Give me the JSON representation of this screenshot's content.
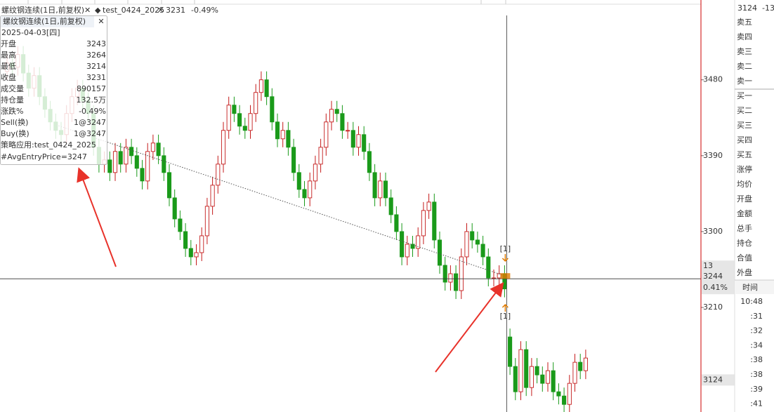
{
  "toolbar": {
    "symbol": "螺纹钢连续(1日,前复权)",
    "close_icon": "✕",
    "strategy": "test_0424_2025",
    "strategy_icon": "◆",
    "close_icon_2": "✕",
    "price": "3231",
    "change": "-0.49%"
  },
  "tooltip": {
    "title": "螺纹钢连续(1日,前复权)",
    "date": "2025-04-03[四]",
    "rows": [
      {
        "label": "开盘",
        "value": "3243",
        "color": "#333333"
      },
      {
        "label": "最高",
        "value": "3264",
        "color": "#333333"
      },
      {
        "label": "最低",
        "value": "3214",
        "color": "#333333"
      },
      {
        "label": "收盘",
        "value": "3231",
        "color": "#1a9a1a"
      },
      {
        "label": "成交量",
        "value": "890157",
        "color": "#333333"
      },
      {
        "label": "持仓量",
        "value": "132.5万",
        "color": "#333333"
      },
      {
        "label": "涨跌%",
        "value": "-0.49%",
        "color": "#1a9a1a"
      },
      {
        "label": "Sell(换)",
        "value": "1@3247",
        "color": "#333333"
      },
      {
        "label": "Buy(换)",
        "value": "1@3247",
        "color": "#333333"
      }
    ],
    "strategy_line": "策略应用:test_0424_2025",
    "entry_line": "#AvgEntryPrice=3247"
  },
  "chart_data": {
    "type": "candlestick",
    "up_color": "#c41a1a",
    "down_color": "#1a9a1a",
    "open": [
      3490,
      3500,
      3495,
      3510,
      3488,
      3470,
      3485,
      3460,
      3445,
      3430,
      3420,
      3415,
      3440,
      3460,
      3470,
      3455,
      3440,
      3400,
      3380,
      3385,
      3370,
      3395,
      3380,
      3400,
      3390,
      3375,
      3360,
      3395,
      3405,
      3390,
      3370,
      3340,
      3315,
      3300,
      3280,
      3270,
      3275,
      3295,
      3330,
      3355,
      3380,
      3420,
      3450,
      3440,
      3425,
      3420,
      3440,
      3465,
      3480,
      3460,
      3430,
      3410,
      3420,
      3400,
      3370,
      3350,
      3340,
      3360,
      3380,
      3400,
      3430,
      3445,
      3440,
      3420,
      3420,
      3400,
      3415,
      3395,
      3370,
      3340,
      3360,
      3340,
      3320,
      3300,
      3270,
      3285,
      3280,
      3295,
      3325,
      3335,
      3290,
      3260,
      3240,
      3250,
      3230,
      3270,
      3300,
      3290,
      3285,
      3270,
      3245,
      3245,
      3250,
      3175,
      3140,
      3110,
      3160,
      3115,
      3140,
      3130,
      3120,
      3135,
      3110,
      3105,
      3095,
      3120,
      3145,
      3135
    ],
    "high": [
      3510,
      3510,
      3520,
      3520,
      3498,
      3495,
      3495,
      3470,
      3455,
      3440,
      3430,
      3450,
      3470,
      3480,
      3480,
      3465,
      3450,
      3410,
      3395,
      3395,
      3405,
      3405,
      3410,
      3410,
      3400,
      3385,
      3405,
      3415,
      3415,
      3400,
      3380,
      3350,
      3325,
      3310,
      3290,
      3285,
      3305,
      3340,
      3365,
      3390,
      3430,
      3460,
      3460,
      3450,
      3435,
      3450,
      3475,
      3490,
      3490,
      3470,
      3440,
      3430,
      3430,
      3410,
      3380,
      3360,
      3370,
      3390,
      3410,
      3440,
      3455,
      3455,
      3450,
      3430,
      3430,
      3425,
      3425,
      3405,
      3380,
      3370,
      3370,
      3350,
      3330,
      3310,
      3295,
      3295,
      3305,
      3335,
      3345,
      3345,
      3300,
      3270,
      3260,
      3260,
      3280,
      3310,
      3310,
      3300,
      3295,
      3280,
      3255,
      3260,
      3260,
      3185,
      3150,
      3170,
      3170,
      3150,
      3150,
      3140,
      3145,
      3145,
      3120,
      3115,
      3130,
      3155,
      3155,
      3160
    ],
    "low": [
      3480,
      3485,
      3485,
      3478,
      3460,
      3460,
      3450,
      3435,
      3420,
      3410,
      3405,
      3405,
      3430,
      3450,
      3445,
      3430,
      3390,
      3370,
      3370,
      3360,
      3360,
      3370,
      3370,
      3380,
      3365,
      3350,
      3350,
      3385,
      3380,
      3360,
      3330,
      3305,
      3290,
      3270,
      3260,
      3260,
      3265,
      3285,
      3320,
      3345,
      3370,
      3410,
      3430,
      3415,
      3410,
      3410,
      3430,
      3455,
      3450,
      3420,
      3400,
      3400,
      3390,
      3360,
      3340,
      3330,
      3330,
      3350,
      3370,
      3390,
      3420,
      3430,
      3410,
      3410,
      3390,
      3390,
      3385,
      3360,
      3330,
      3330,
      3330,
      3310,
      3290,
      3260,
      3260,
      3270,
      3270,
      3285,
      3315,
      3280,
      3250,
      3230,
      3230,
      3220,
      3220,
      3260,
      3280,
      3275,
      3260,
      3235,
      3235,
      3235,
      3222,
      3130,
      3100,
      3100,
      3105,
      3105,
      3120,
      3110,
      3110,
      3100,
      3095,
      3085,
      3085,
      3110,
      3125,
      3125
    ],
    "close": [
      3500,
      3495,
      3510,
      3488,
      3470,
      3485,
      3460,
      3445,
      3430,
      3420,
      3415,
      3440,
      3460,
      3470,
      3455,
      3440,
      3400,
      3380,
      3385,
      3370,
      3395,
      3380,
      3400,
      3390,
      3375,
      3360,
      3395,
      3405,
      3390,
      3370,
      3340,
      3315,
      3300,
      3280,
      3270,
      3275,
      3295,
      3330,
      3355,
      3380,
      3420,
      3450,
      3440,
      3425,
      3420,
      3440,
      3465,
      3480,
      3460,
      3430,
      3410,
      3420,
      3400,
      3370,
      3350,
      3340,
      3360,
      3380,
      3400,
      3430,
      3445,
      3440,
      3420,
      3420,
      3400,
      3415,
      3395,
      3370,
      3340,
      3360,
      3340,
      3320,
      3300,
      3270,
      3285,
      3280,
      3295,
      3325,
      3335,
      3290,
      3260,
      3240,
      3250,
      3230,
      3270,
      3300,
      3290,
      3285,
      3270,
      3245,
      3245,
      3250,
      3232,
      3140,
      3110,
      3160,
      3115,
      3140,
      3130,
      3120,
      3135,
      3110,
      3105,
      3095,
      3120,
      3145,
      3135,
      3150
    ],
    "ylim": [
      3086,
      3568
    ],
    "yticks": [
      3480,
      3390,
      3300,
      3210
    ],
    "crosshair": {
      "count": "13",
      "price": 3244,
      "percent": "0.41%"
    },
    "last_price": 3124,
    "trade_markers": [
      "[1]",
      "[1]"
    ]
  },
  "quote_panel": {
    "last": "3124",
    "change": "-13",
    "items": [
      "卖五",
      "卖四",
      "卖三",
      "卖二",
      "卖一",
      "买一",
      "买二",
      "买三",
      "买四",
      "买五",
      "涨停",
      "均价",
      "开盘",
      "金额",
      "总手",
      "持仓",
      "合值",
      "外盘"
    ],
    "time_header": "时间",
    "times": [
      "10:48",
      ":31",
      ":32",
      ":34",
      ":38",
      ":38",
      ":39",
      ":41"
    ]
  }
}
